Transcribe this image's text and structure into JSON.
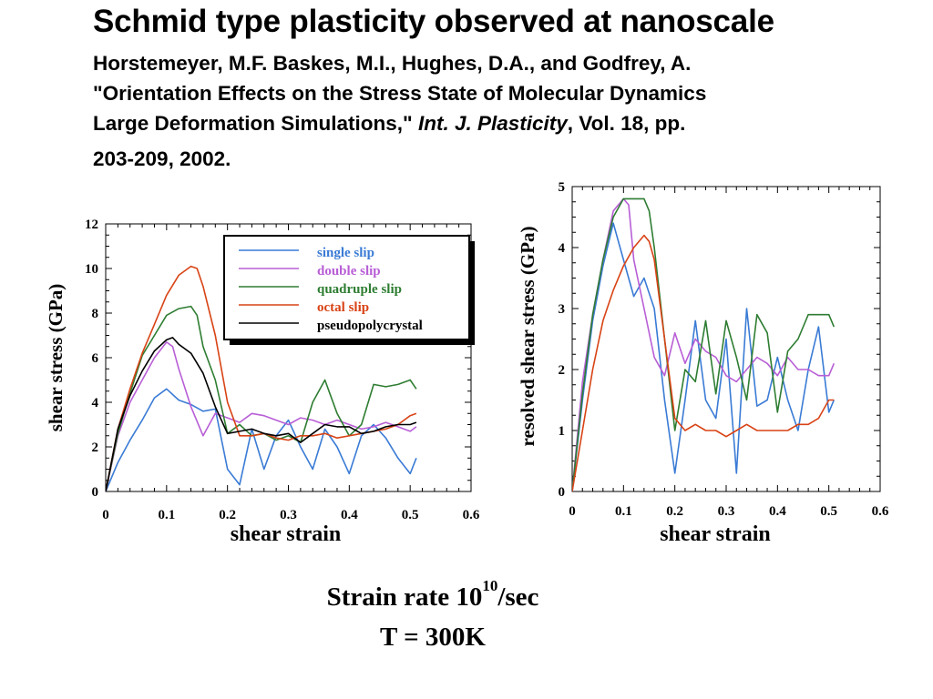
{
  "header": {
    "title": "Schmid type plasticity observed at nanoscale",
    "citation_authors": "Horstemeyer, M.F. Baskes, M.I., Hughes, D.A., and Godfrey, A.",
    "citation_title_a": "\"Orientation Effects on the Stress State of Molecular Dynamics",
    "citation_title_b": "Large Deformation Simulations,\"",
    "citation_journal": "Int. J. Plasticity",
    "citation_volume": ", Vol. 18, pp.",
    "citation_pages": "203-209, 2002."
  },
  "caption": {
    "rate_prefix": "Strain rate 10",
    "rate_exponent": "10",
    "rate_suffix": "/sec",
    "temperature": "T = 300K"
  },
  "chart_data": [
    {
      "type": "line",
      "xlabel": "shear strain",
      "ylabel": "shear stress (GPa)",
      "xlim": [
        0,
        0.6
      ],
      "ylim": [
        0,
        12
      ],
      "xticks": [
        "0",
        "0.1",
        "0.2",
        "0.3",
        "0.4",
        "0.5",
        "0.6"
      ],
      "yticks": [
        "0",
        "2",
        "4",
        "6",
        "8",
        "10",
        "12"
      ],
      "legend_position": "top-right",
      "series": [
        {
          "name": "single slip",
          "color": "#3a7bd5",
          "label_color": "#3a7bd5",
          "x": [
            0,
            0.02,
            0.04,
            0.06,
            0.08,
            0.1,
            0.12,
            0.14,
            0.16,
            0.18,
            0.2,
            0.22,
            0.24,
            0.26,
            0.28,
            0.3,
            0.32,
            0.34,
            0.36,
            0.38,
            0.4,
            0.42,
            0.44,
            0.46,
            0.48,
            0.5,
            0.51
          ],
          "y": [
            0,
            1.3,
            2.3,
            3.2,
            4.2,
            4.6,
            4.1,
            3.9,
            3.6,
            3.7,
            1.0,
            0.3,
            2.8,
            1.0,
            2.5,
            3.2,
            2.0,
            1.0,
            2.8,
            2.0,
            0.8,
            2.5,
            3.0,
            2.4,
            1.5,
            0.8,
            1.5
          ]
        },
        {
          "name": "double slip",
          "color": "#b85ed6",
          "label_color": "#b85ed6",
          "x": [
            0,
            0.02,
            0.04,
            0.06,
            0.08,
            0.1,
            0.11,
            0.12,
            0.14,
            0.16,
            0.18,
            0.2,
            0.22,
            0.24,
            0.26,
            0.28,
            0.3,
            0.32,
            0.34,
            0.36,
            0.38,
            0.4,
            0.42,
            0.44,
            0.46,
            0.48,
            0.5,
            0.51
          ],
          "y": [
            0,
            2.5,
            4.0,
            5.0,
            6.0,
            6.7,
            6.5,
            5.5,
            3.8,
            2.5,
            3.5,
            3.3,
            3.1,
            3.5,
            3.4,
            3.2,
            3.0,
            3.3,
            3.2,
            3.0,
            3.2,
            3.0,
            2.8,
            2.9,
            3.1,
            2.9,
            2.7,
            2.9
          ]
        },
        {
          "name": "quadruple slip",
          "color": "#2e7d32",
          "label_color": "#2e7d32",
          "x": [
            0,
            0.02,
            0.04,
            0.06,
            0.08,
            0.1,
            0.12,
            0.14,
            0.15,
            0.16,
            0.18,
            0.2,
            0.22,
            0.24,
            0.26,
            0.28,
            0.3,
            0.32,
            0.34,
            0.36,
            0.38,
            0.4,
            0.42,
            0.44,
            0.46,
            0.48,
            0.5,
            0.51
          ],
          "y": [
            0,
            2.6,
            4.4,
            6.1,
            7.0,
            7.9,
            8.2,
            8.3,
            7.9,
            6.5,
            5.0,
            2.6,
            3.0,
            2.5,
            2.6,
            2.3,
            2.5,
            2.2,
            4.0,
            5.0,
            3.5,
            2.5,
            3.0,
            4.8,
            4.7,
            4.8,
            5.0,
            4.6
          ]
        },
        {
          "name": "octal slip",
          "color": "#d84315",
          "label_color": "#d84315",
          "x": [
            0,
            0.02,
            0.04,
            0.06,
            0.08,
            0.1,
            0.12,
            0.14,
            0.15,
            0.16,
            0.18,
            0.2,
            0.22,
            0.24,
            0.26,
            0.28,
            0.3,
            0.32,
            0.34,
            0.36,
            0.38,
            0.4,
            0.42,
            0.44,
            0.46,
            0.48,
            0.5,
            0.51
          ],
          "y": [
            0,
            2.8,
            4.6,
            6.2,
            7.5,
            8.8,
            9.7,
            10.1,
            10.0,
            9.2,
            7.0,
            4.0,
            2.5,
            2.5,
            2.6,
            2.4,
            2.3,
            2.5,
            2.5,
            2.6,
            2.4,
            2.5,
            2.6,
            2.7,
            2.8,
            3.0,
            3.4,
            3.5
          ]
        },
        {
          "name": "pseudopolycrystal",
          "color": "#000000",
          "label_color": "#000000",
          "x": [
            0,
            0.02,
            0.04,
            0.06,
            0.08,
            0.1,
            0.11,
            0.12,
            0.14,
            0.16,
            0.18,
            0.2,
            0.22,
            0.24,
            0.26,
            0.28,
            0.3,
            0.32,
            0.34,
            0.36,
            0.38,
            0.4,
            0.42,
            0.44,
            0.46,
            0.48,
            0.5,
            0.51
          ],
          "y": [
            0,
            2.8,
            4.3,
            5.4,
            6.3,
            6.8,
            6.9,
            6.6,
            6.2,
            5.3,
            3.8,
            2.6,
            2.7,
            2.8,
            2.6,
            2.5,
            2.6,
            2.2,
            2.6,
            3.0,
            2.9,
            2.9,
            2.6,
            2.7,
            2.9,
            3.0,
            3.0,
            3.1
          ]
        }
      ]
    },
    {
      "type": "line",
      "xlabel": "shear strain",
      "ylabel": "resolved shear stress (GPa)",
      "xlim": [
        0,
        0.6
      ],
      "ylim": [
        0,
        5
      ],
      "xticks": [
        "0",
        "0.1",
        "0.2",
        "0.3",
        "0.4",
        "0.5",
        "0.6"
      ],
      "yticks": [
        "0",
        "1",
        "2",
        "3",
        "4",
        "5"
      ],
      "series": [
        {
          "name": "single slip",
          "color": "#3a7bd5",
          "x": [
            0,
            0.02,
            0.04,
            0.06,
            0.08,
            0.1,
            0.12,
            0.14,
            0.16,
            0.18,
            0.2,
            0.22,
            0.24,
            0.26,
            0.28,
            0.3,
            0.32,
            0.34,
            0.36,
            0.38,
            0.4,
            0.42,
            0.44,
            0.46,
            0.48,
            0.5,
            0.51
          ],
          "y": [
            0,
            1.5,
            2.8,
            3.7,
            4.4,
            3.8,
            3.2,
            3.5,
            3.0,
            1.5,
            0.3,
            1.5,
            2.8,
            1.5,
            1.2,
            2.5,
            0.3,
            3.0,
            1.4,
            1.5,
            2.2,
            1.5,
            1.0,
            2.0,
            2.7,
            1.3,
            1.5
          ]
        },
        {
          "name": "double slip",
          "color": "#b85ed6",
          "x": [
            0,
            0.02,
            0.04,
            0.06,
            0.08,
            0.1,
            0.11,
            0.12,
            0.14,
            0.16,
            0.18,
            0.2,
            0.22,
            0.24,
            0.26,
            0.28,
            0.3,
            0.32,
            0.34,
            0.36,
            0.38,
            0.4,
            0.42,
            0.44,
            0.46,
            0.48,
            0.5,
            0.51
          ],
          "y": [
            0,
            1.8,
            2.9,
            3.8,
            4.6,
            4.8,
            4.7,
            3.8,
            3.0,
            2.2,
            1.9,
            2.6,
            2.1,
            2.5,
            2.3,
            2.2,
            1.9,
            1.8,
            2.0,
            2.2,
            2.1,
            1.9,
            2.2,
            2.0,
            2.0,
            1.9,
            1.9,
            2.1
          ]
        },
        {
          "name": "quadruple slip",
          "color": "#2e7d32",
          "x": [
            0,
            0.02,
            0.04,
            0.06,
            0.08,
            0.1,
            0.12,
            0.14,
            0.15,
            0.16,
            0.18,
            0.2,
            0.22,
            0.24,
            0.26,
            0.28,
            0.3,
            0.32,
            0.34,
            0.36,
            0.38,
            0.4,
            0.42,
            0.44,
            0.46,
            0.48,
            0.5,
            0.51
          ],
          "y": [
            0,
            1.6,
            2.9,
            3.8,
            4.5,
            4.8,
            4.8,
            4.8,
            4.6,
            4.0,
            2.5,
            1.0,
            2.0,
            1.8,
            2.8,
            1.6,
            2.8,
            2.2,
            1.5,
            2.9,
            2.6,
            1.3,
            2.3,
            2.5,
            2.9,
            2.9,
            2.9,
            2.7
          ]
        },
        {
          "name": "octal slip",
          "color": "#d84315",
          "x": [
            0,
            0.02,
            0.04,
            0.06,
            0.08,
            0.1,
            0.12,
            0.14,
            0.15,
            0.16,
            0.18,
            0.2,
            0.22,
            0.24,
            0.26,
            0.28,
            0.3,
            0.32,
            0.34,
            0.36,
            0.38,
            0.4,
            0.42,
            0.44,
            0.46,
            0.48,
            0.5,
            0.51
          ],
          "y": [
            0,
            1.0,
            2.0,
            2.8,
            3.3,
            3.7,
            4.0,
            4.2,
            4.1,
            3.8,
            2.5,
            1.2,
            1.0,
            1.1,
            1.0,
            1.0,
            0.9,
            1.0,
            1.1,
            1.0,
            1.0,
            1.0,
            1.0,
            1.1,
            1.1,
            1.2,
            1.5,
            1.5
          ]
        }
      ]
    }
  ]
}
